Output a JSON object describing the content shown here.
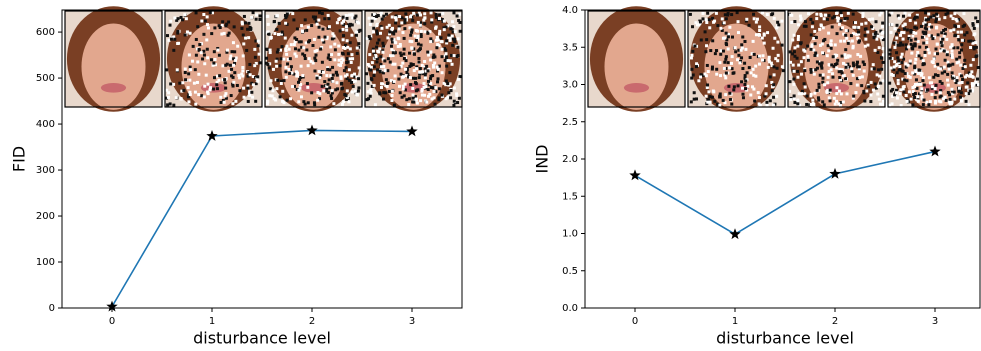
{
  "chart_data": [
    {
      "type": "line",
      "ylabel": "FID",
      "xlabel": "disturbance level",
      "x": [
        0,
        1,
        2,
        3
      ],
      "xlim": [
        -0.5,
        3.5
      ],
      "xticks": [
        0,
        1,
        2,
        3
      ],
      "ylim": [
        0,
        648
      ],
      "yticks": [
        0,
        100,
        200,
        300,
        400,
        500,
        600
      ],
      "series": [
        {
          "color": "#1f77b4",
          "values": [
            3,
            374,
            386,
            384
          ]
        }
      ]
    },
    {
      "type": "line",
      "ylabel": "IND",
      "xlabel": "disturbance level",
      "x": [
        0,
        1,
        2,
        3
      ],
      "xlim": [
        -0.5,
        3.5
      ],
      "xticks": [
        0,
        1,
        2,
        3
      ],
      "ylim": [
        0,
        4
      ],
      "yticks": [
        {
          "value": 0,
          "label": "0.0"
        },
        0.5,
        {
          "value": 1,
          "label": "1.0"
        },
        1.5,
        {
          "value": 2,
          "label": "2.0"
        },
        2.5,
        {
          "value": 3,
          "label": "3.0"
        },
        3.5,
        {
          "value": 4,
          "label": "4.0"
        }
      ],
      "series": [
        {
          "color": "#1f77b4",
          "values": [
            1.78,
            0.99,
            1.8,
            2.1
          ]
        }
      ]
    }
  ]
}
